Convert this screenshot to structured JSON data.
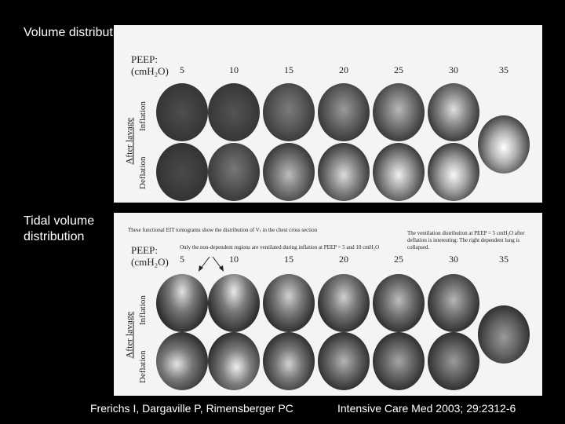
{
  "side_labels": {
    "volume": "Volume distribution",
    "tidal": "Tidal volume distribution"
  },
  "peep_label": [
    "PEEP:",
    "(cmH₂O)"
  ],
  "peep_values": [
    "5",
    "10",
    "15",
    "20",
    "25",
    "30",
    "35"
  ],
  "axis_label": "After lavage",
  "row_labels": [
    "Inflation",
    "Deflation"
  ],
  "tidal_notes": {
    "top": "These functional EIT tomograms show the distribution of Vₜ in the chest cross section",
    "middle": "Only the non-dependent regions are ventilated during inflation at PEEP = 5 and 10 cmH₂O",
    "right": "The ventilation distribution at PEEP = 5 cmH₂O after deflation is interesting: The right dependent lung is collapsed."
  },
  "citation": {
    "authors": "Frerichs I, Dargaville P, Rimensberger PC",
    "journal": "Intensive Care Med 2003; 29:2312-6"
  },
  "colors": {
    "background": "#000000",
    "panel": "#f4f4f4",
    "text": "#ffffff"
  }
}
